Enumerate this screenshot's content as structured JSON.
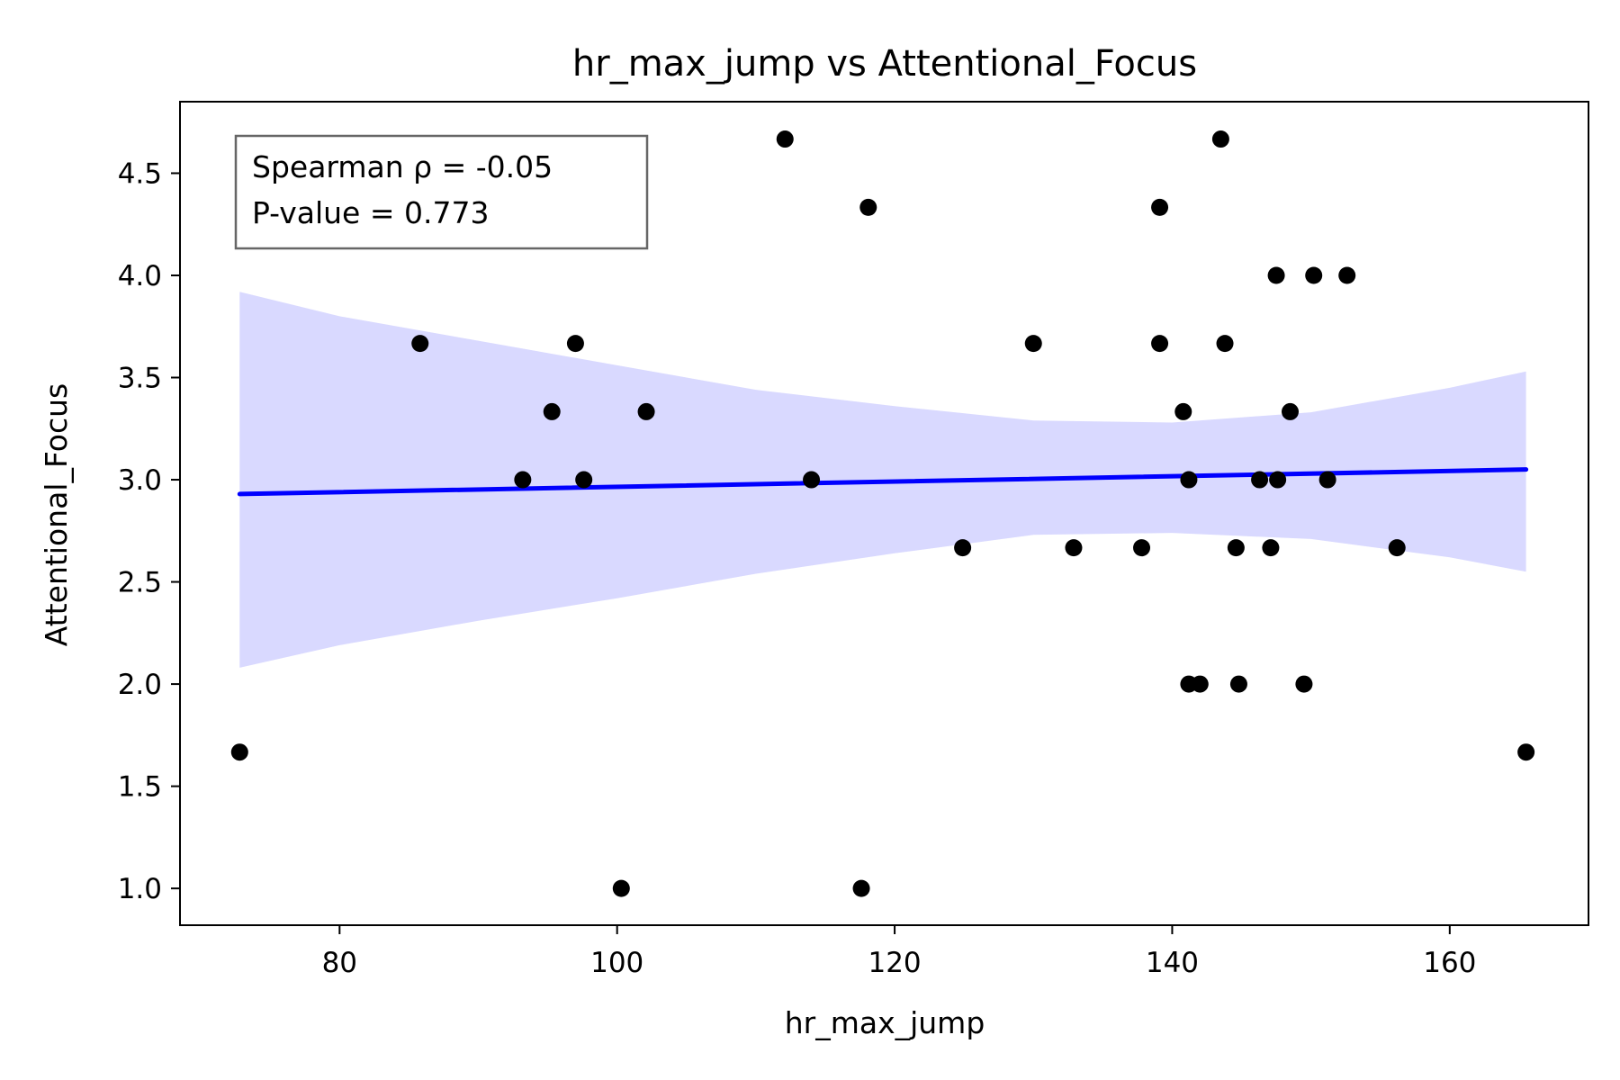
{
  "chart_data": {
    "type": "scatter",
    "title": "hr_max_jump vs Attentional_Focus",
    "xlabel": "hr_max_jump",
    "ylabel": "Attentional_Focus",
    "xlim": [
      68.5,
      170.0
    ],
    "ylim": [
      0.82,
      4.85
    ],
    "xticks": [
      80,
      100,
      120,
      140,
      160
    ],
    "yticks": [
      1.0,
      1.5,
      2.0,
      2.5,
      3.0,
      3.5,
      4.0,
      4.5
    ],
    "grid": false,
    "point_color": "#000000",
    "line_color": "#0000ff",
    "band_color": "#d9d9ff",
    "annotation": {
      "lines": [
        "Spearman ρ = -0.05",
        "P-value = 0.773"
      ],
      "placement": "top-left"
    },
    "points": [
      {
        "x": 72.8,
        "y": 1.667
      },
      {
        "x": 85.8,
        "y": 3.667
      },
      {
        "x": 93.2,
        "y": 3.0
      },
      {
        "x": 95.3,
        "y": 3.333
      },
      {
        "x": 97.0,
        "y": 3.667
      },
      {
        "x": 97.6,
        "y": 3.0
      },
      {
        "x": 100.3,
        "y": 1.0
      },
      {
        "x": 102.1,
        "y": 3.333
      },
      {
        "x": 112.1,
        "y": 4.667
      },
      {
        "x": 114.0,
        "y": 3.0
      },
      {
        "x": 117.6,
        "y": 1.0
      },
      {
        "x": 118.1,
        "y": 4.333
      },
      {
        "x": 124.9,
        "y": 2.667
      },
      {
        "x": 130.0,
        "y": 3.667
      },
      {
        "x": 132.9,
        "y": 2.667
      },
      {
        "x": 137.8,
        "y": 2.667
      },
      {
        "x": 139.1,
        "y": 3.667
      },
      {
        "x": 139.1,
        "y": 4.333
      },
      {
        "x": 140.8,
        "y": 3.333
      },
      {
        "x": 141.2,
        "y": 3.0
      },
      {
        "x": 141.2,
        "y": 2.0
      },
      {
        "x": 142.0,
        "y": 2.0
      },
      {
        "x": 143.5,
        "y": 4.667
      },
      {
        "x": 143.8,
        "y": 3.667
      },
      {
        "x": 144.6,
        "y": 2.667
      },
      {
        "x": 144.8,
        "y": 2.0
      },
      {
        "x": 146.3,
        "y": 3.0
      },
      {
        "x": 147.1,
        "y": 2.667
      },
      {
        "x": 147.5,
        "y": 4.0
      },
      {
        "x": 147.6,
        "y": 3.0
      },
      {
        "x": 148.5,
        "y": 3.333
      },
      {
        "x": 149.5,
        "y": 2.0
      },
      {
        "x": 150.2,
        "y": 4.0
      },
      {
        "x": 151.2,
        "y": 3.0
      },
      {
        "x": 152.6,
        "y": 4.0
      },
      {
        "x": 156.2,
        "y": 2.667
      },
      {
        "x": 165.5,
        "y": 1.667
      }
    ],
    "regression": {
      "x": [
        72.8,
        165.5
      ],
      "y": [
        2.93,
        3.05
      ]
    },
    "confidence_band": {
      "x": [
        72.8,
        80,
        90,
        100,
        110,
        120,
        130,
        140,
        150,
        160,
        165.5
      ],
      "upper": [
        3.92,
        3.8,
        3.68,
        3.56,
        3.44,
        3.36,
        3.29,
        3.28,
        3.33,
        3.45,
        3.53
      ],
      "lower": [
        2.08,
        2.19,
        2.31,
        2.42,
        2.54,
        2.64,
        2.73,
        2.74,
        2.71,
        2.62,
        2.55
      ]
    }
  }
}
